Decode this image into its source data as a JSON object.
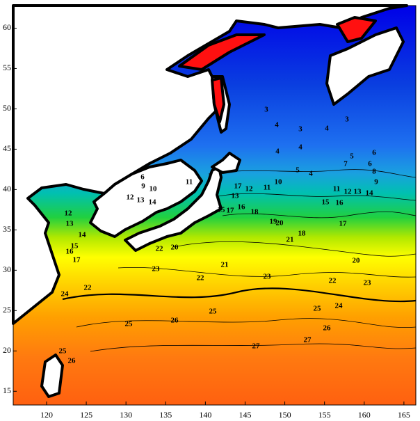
{
  "map": {
    "xlim": [
      115.8,
      166.5
    ],
    "ylim": [
      13.3,
      62.8
    ],
    "xticks": [
      120,
      125,
      130,
      135,
      140,
      145,
      150,
      155,
      160,
      165
    ],
    "yticks": [
      15,
      20,
      25,
      30,
      35,
      40,
      45,
      50,
      55,
      60
    ],
    "contour_labels": [
      3,
      4,
      3,
      4,
      3,
      4,
      4,
      5,
      4,
      5,
      6,
      7,
      6,
      8,
      9,
      6,
      9,
      10,
      11,
      12,
      13,
      14,
      12,
      13,
      14,
      15,
      16,
      17,
      17,
      12,
      13,
      11,
      10,
      15,
      17,
      16,
      18,
      19,
      20,
      15,
      16,
      11,
      12,
      13,
      14,
      18,
      17,
      20,
      21,
      22,
      20,
      21,
      22,
      23,
      23,
      22,
      23,
      22,
      24,
      25,
      25,
      24,
      25,
      26,
      26,
      27,
      27,
      25,
      26
    ]
  }
}
